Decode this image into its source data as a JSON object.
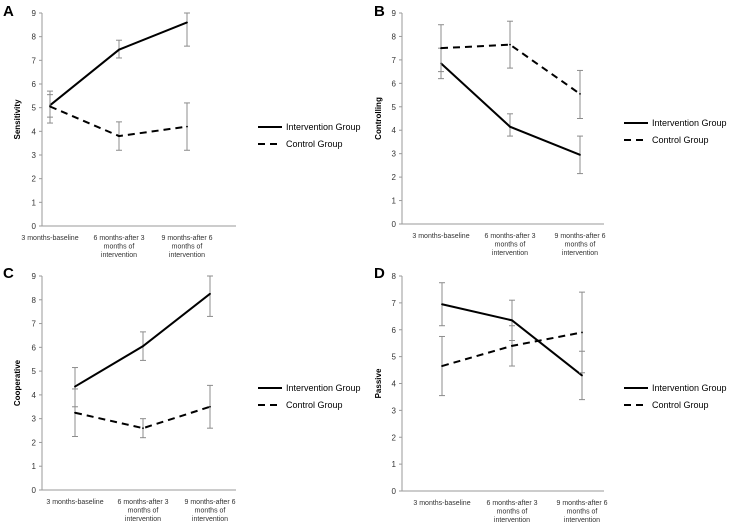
{
  "chart_data": [
    {
      "panel": "A",
      "type": "line",
      "ylabel": "Sensitivity",
      "ylim": [
        0,
        9
      ],
      "yticks": [
        "0",
        "1",
        "2",
        "3",
        "4",
        "5",
        "6",
        "7",
        "8",
        "9"
      ],
      "categories": [
        [
          "3 months-baseline"
        ],
        [
          "6 months-after 3",
          "months of",
          "intervention"
        ],
        [
          "9 months-after 6",
          "months of",
          "intervention"
        ]
      ],
      "series": [
        {
          "name": "Intervention Group",
          "style": "solid",
          "values": [
            5.1,
            7.45,
            8.6
          ],
          "err_low": [
            4.6,
            7.1,
            7.6
          ],
          "err_high": [
            5.7,
            7.85,
            9.0
          ]
        },
        {
          "name": "Control Group",
          "style": "dashed",
          "values": [
            5.05,
            3.8,
            4.2
          ],
          "err_low": [
            4.35,
            3.2,
            3.2
          ],
          "err_high": [
            5.55,
            4.4,
            5.2
          ]
        }
      ]
    },
    {
      "panel": "B",
      "type": "line",
      "ylabel": "Controlling",
      "ylim": [
        0,
        9
      ],
      "yticks": [
        "0",
        "1",
        "2",
        "3",
        "4",
        "5",
        "6",
        "7",
        "8",
        "9"
      ],
      "categories": [
        [
          "3 months-baseline"
        ],
        [
          "6 months-after 3",
          "months of",
          "intervention"
        ],
        [
          "9 months-after 6",
          "months of",
          "intervention"
        ]
      ],
      "series": [
        {
          "name": "Intervention Group",
          "style": "solid",
          "values": [
            6.85,
            4.15,
            2.95
          ],
          "err_low": [
            6.2,
            3.75,
            2.15
          ],
          "err_high": [
            7.5,
            4.7,
            3.75
          ]
        },
        {
          "name": "Control Group",
          "style": "dashed",
          "values": [
            7.5,
            7.65,
            5.55
          ],
          "err_low": [
            6.5,
            6.65,
            4.5
          ],
          "err_high": [
            8.5,
            8.65,
            6.55
          ]
        }
      ]
    },
    {
      "panel": "C",
      "type": "line",
      "ylabel": "Cooperative",
      "ylim": [
        0,
        9
      ],
      "yticks": [
        "0",
        "1",
        "2",
        "3",
        "4",
        "5",
        "6",
        "7",
        "8",
        "9"
      ],
      "categories": [
        [
          "3 months-baseline"
        ],
        [
          "6 months-after 3",
          "months of",
          "intervention"
        ],
        [
          "9 months-after 6",
          "months of",
          "intervention"
        ]
      ],
      "series": [
        {
          "name": "Intervention Group",
          "style": "solid",
          "values": [
            4.35,
            6.05,
            8.25
          ],
          "err_low": [
            3.5,
            5.45,
            7.3
          ],
          "err_high": [
            5.15,
            6.65,
            9.0
          ]
        },
        {
          "name": "Control Group",
          "style": "dashed",
          "values": [
            3.25,
            2.6,
            3.5
          ],
          "err_low": [
            2.25,
            2.2,
            2.6
          ],
          "err_high": [
            4.25,
            3.0,
            4.4
          ]
        }
      ]
    },
    {
      "panel": "D",
      "type": "line",
      "ylabel": "Passive",
      "ylim": [
        0,
        8
      ],
      "yticks": [
        "0",
        "1",
        "2",
        "3",
        "4",
        "5",
        "6",
        "7",
        "8"
      ],
      "categories": [
        [
          "3 months-baseline"
        ],
        [
          "6 months-after 3",
          "months of",
          "intervention"
        ],
        [
          "9 months-after 6",
          "months of",
          "intervention"
        ]
      ],
      "series": [
        {
          "name": "Intervention Group",
          "style": "solid",
          "values": [
            6.95,
            6.35,
            4.3
          ],
          "err_low": [
            6.15,
            5.6,
            3.4
          ],
          "err_high": [
            7.75,
            7.1,
            5.2
          ]
        },
        {
          "name": "Control Group",
          "style": "dashed",
          "values": [
            4.65,
            5.4,
            5.9
          ],
          "err_low": [
            3.55,
            4.65,
            4.4
          ],
          "err_high": [
            5.75,
            6.15,
            7.4
          ]
        }
      ]
    }
  ],
  "legend": {
    "intervention": "Intervention Group",
    "control": "Control Group"
  }
}
